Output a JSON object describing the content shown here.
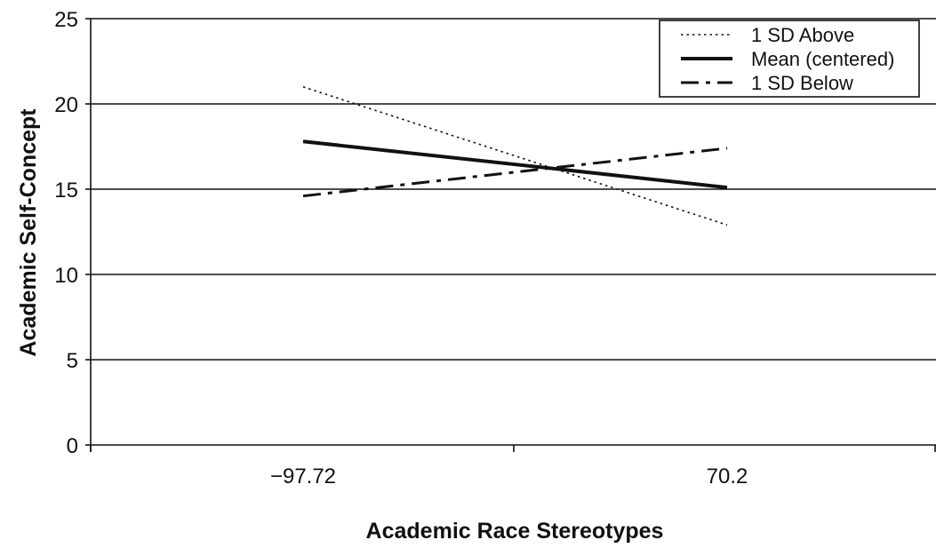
{
  "chart_data": {
    "type": "line",
    "title": "",
    "xlabel": "Academic Race Stereotypes",
    "ylabel": "Academic Self-Concept",
    "categories": [
      "−97.72",
      "70.2"
    ],
    "x": [
      -97.72,
      70.2
    ],
    "ylim": [
      0,
      25
    ],
    "yticks": [
      0,
      5,
      10,
      15,
      20,
      25
    ],
    "grid": "horizontal",
    "legend_position": "top-right",
    "series": [
      {
        "name": "1 SD Above",
        "style": "dotted",
        "values": [
          21.0,
          12.9
        ]
      },
      {
        "name": "Mean (centered)",
        "style": "solid",
        "values": [
          17.8,
          15.1
        ]
      },
      {
        "name": "1 SD Below",
        "style": "dash-dot",
        "values": [
          14.6,
          17.4
        ]
      }
    ],
    "colors": {
      "lines": "#111111",
      "grid": "#111111",
      "background": "#ffffff"
    }
  }
}
